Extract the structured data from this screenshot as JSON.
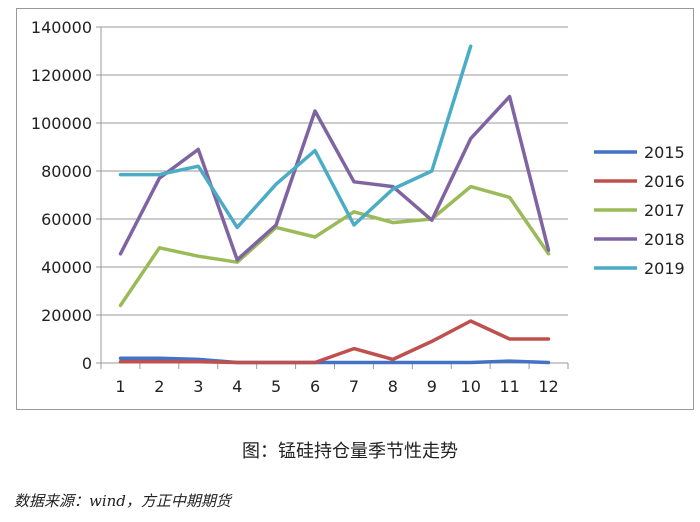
{
  "figure": {
    "caption": "图：锰硅持仓量季节性走势",
    "source": "数据来源：wind，方正中期期货"
  },
  "chart_data": {
    "type": "line",
    "title": "",
    "xlabel": "",
    "ylabel": "",
    "categories": [
      "1",
      "2",
      "3",
      "4",
      "5",
      "6",
      "7",
      "8",
      "9",
      "10",
      "11",
      "12"
    ],
    "ylim": [
      0,
      140000
    ],
    "yticks": [
      0,
      20000,
      40000,
      60000,
      80000,
      100000,
      120000,
      140000
    ],
    "ytick_labels": [
      "0",
      "20000",
      "40000",
      "60000",
      "80000",
      "100000",
      "120000",
      "140000"
    ],
    "grid": "horizontal",
    "legend_position": "right",
    "series": [
      {
        "name": "2015",
        "color": "#4472c4",
        "values": [
          2000,
          2000,
          1500,
          200,
          200,
          200,
          200,
          200,
          200,
          200,
          800,
          200
        ]
      },
      {
        "name": "2016",
        "color": "#c0504d",
        "values": [
          500,
          500,
          500,
          200,
          200,
          200,
          6000,
          1500,
          9000,
          17500,
          10000,
          10000
        ]
      },
      {
        "name": "2017",
        "color": "#9bbb59",
        "values": [
          24000,
          48000,
          44500,
          42000,
          56500,
          52500,
          63000,
          58500,
          60000,
          73500,
          69000,
          45500
        ]
      },
      {
        "name": "2018",
        "color": "#8064a2",
        "values": [
          45500,
          77000,
          89000,
          43000,
          57500,
          105000,
          75500,
          73500,
          59500,
          93500,
          111000,
          47000
        ]
      },
      {
        "name": "2019",
        "color": "#4bacc6",
        "values": [
          78500,
          78500,
          82000,
          56500,
          74500,
          88500,
          57500,
          72500,
          80000,
          132000,
          null,
          null
        ]
      }
    ]
  }
}
